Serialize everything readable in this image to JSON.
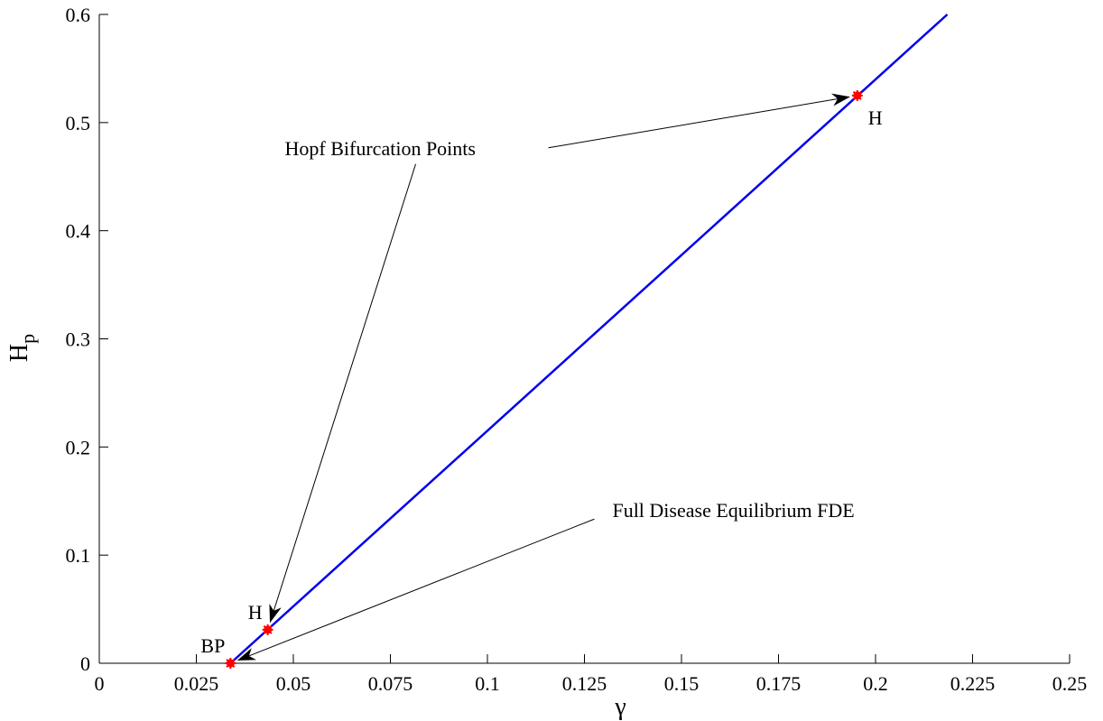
{
  "chart_data": {
    "type": "line",
    "xlabel": "γ",
    "ylabel": {
      "main": "H",
      "sub": "p"
    },
    "xlim": [
      0,
      0.25
    ],
    "ylim": [
      0,
      0.6
    ],
    "xticks": [
      0,
      0.025,
      0.05,
      0.075,
      0.1,
      0.125,
      0.15,
      0.175,
      0.2,
      0.225,
      0.25
    ],
    "xtick_labels": [
      "0",
      "0.025",
      "0.05",
      "0.075",
      "0.1",
      "0.125",
      "0.15",
      "0.175",
      "0.2",
      "0.225",
      "0.25"
    ],
    "yticks": [
      0,
      0.1,
      0.2,
      0.3,
      0.4,
      0.5,
      0.6
    ],
    "ytick_labels": [
      "0",
      "0.1",
      "0.2",
      "0.3",
      "0.4",
      "0.5",
      "0.6"
    ],
    "grid": false,
    "series": [
      {
        "x": [
          0.0338,
          0.2185
        ],
        "y": [
          0,
          0.6
        ],
        "color": "#0000ee"
      }
    ],
    "points": [
      {
        "label": "BP",
        "x": 0.0338,
        "y": 0.0,
        "color": "#ff0000",
        "label_pos": "upper-left"
      },
      {
        "label": "H",
        "x": 0.0434,
        "y": 0.031,
        "color": "#ff0000",
        "label_pos": "upper-left"
      },
      {
        "label": "H",
        "x": 0.1953,
        "y": 0.525,
        "color": "#ff0000",
        "label_pos": "lower-right"
      }
    ],
    "annotations": [
      {
        "text": "Hopf Bifurcation Points",
        "anchor": {
          "x": 0.0478,
          "y": 0.47
        },
        "arrows_to": [
          {
            "x": 0.0434,
            "y": 0.031
          },
          {
            "x": 0.1953,
            "y": 0.525
          }
        ]
      },
      {
        "text": "Full Disease Equilibrium FDE",
        "anchor": {
          "x": 0.1322,
          "y": 0.135
        },
        "arrows_to": [
          {
            "x": 0.0338,
            "y": 0.0
          }
        ]
      }
    ]
  }
}
